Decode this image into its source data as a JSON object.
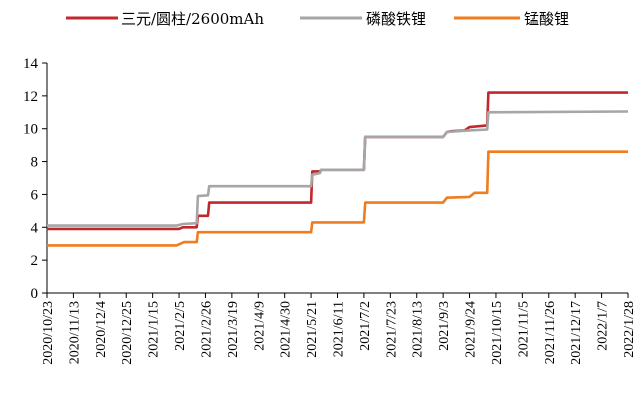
{
  "chart_data": {
    "type": "line",
    "title": "",
    "xlabel": "",
    "ylabel": "",
    "ylim": [
      0,
      14
    ],
    "y_ticks": [
      0,
      2,
      4,
      6,
      8,
      10,
      12,
      14
    ],
    "grid": false,
    "legend_position": "top",
    "x_tick_labels": [
      "2020/10/23",
      "2020/11/13",
      "2020/12/4",
      "2020/12/25",
      "2021/1/15",
      "2021/2/5",
      "2021/2/26",
      "2021/3/19",
      "2021/4/9",
      "2021/4/30",
      "2021/5/21",
      "2021/6/11",
      "2021/7/2",
      "2021/7/23",
      "2021/8/13",
      "2021/9/3",
      "2021/9/24",
      "2021/10/15",
      "2021/11/5",
      "2021/11/26",
      "2021/12/17",
      "2022/1/7",
      "2022/1/28"
    ],
    "series": [
      {
        "name": "三元/圆柱/2600mAh",
        "color": "#c0282d",
        "points": [
          [
            "2020/10/23",
            3.9
          ],
          [
            "2021/2/5",
            3.9
          ],
          [
            "2021/2/8",
            4.0
          ],
          [
            "2021/2/19",
            4.0
          ],
          [
            "2021/2/20",
            4.7
          ],
          [
            "2021/2/28",
            4.7
          ],
          [
            "2021/3/1",
            5.5
          ],
          [
            "2021/5/21",
            5.5
          ],
          [
            "2021/5/22",
            7.4
          ],
          [
            "2021/5/28",
            7.4
          ],
          [
            "2021/5/29",
            7.5
          ],
          [
            "2021/7/2",
            7.5
          ],
          [
            "2021/7/3",
            9.5
          ],
          [
            "2021/9/3",
            9.5
          ],
          [
            "2021/9/6",
            9.8
          ],
          [
            "2021/9/10",
            9.85
          ],
          [
            "2021/9/20",
            9.9
          ],
          [
            "2021/9/24",
            10.1
          ],
          [
            "2021/10/8",
            10.2
          ],
          [
            "2021/10/9",
            12.2
          ],
          [
            "2022/1/28",
            12.2
          ]
        ]
      },
      {
        "name": "磷酸铁锂",
        "color": "#a6a6a6",
        "points": [
          [
            "2020/10/23",
            4.1
          ],
          [
            "2021/2/3",
            4.1
          ],
          [
            "2021/2/8",
            4.2
          ],
          [
            "2021/2/19",
            4.25
          ],
          [
            "2021/2/20",
            5.9
          ],
          [
            "2021/2/28",
            5.95
          ],
          [
            "2021/3/1",
            6.5
          ],
          [
            "2021/5/21",
            6.5
          ],
          [
            "2021/5/22",
            7.2
          ],
          [
            "2021/5/28",
            7.3
          ],
          [
            "2021/5/29",
            7.5
          ],
          [
            "2021/7/2",
            7.5
          ],
          [
            "2021/7/3",
            9.5
          ],
          [
            "2021/9/3",
            9.5
          ],
          [
            "2021/9/6",
            9.8
          ],
          [
            "2021/9/24",
            9.9
          ],
          [
            "2021/10/8",
            9.95
          ],
          [
            "2021/10/9",
            11.0
          ],
          [
            "2022/1/28",
            11.05
          ]
        ]
      },
      {
        "name": "锰酸锂",
        "color": "#f07c1e",
        "points": [
          [
            "2020/10/23",
            2.9
          ],
          [
            "2021/2/3",
            2.9
          ],
          [
            "2021/2/9",
            3.1
          ],
          [
            "2021/2/19",
            3.1
          ],
          [
            "2021/2/20",
            3.7
          ],
          [
            "2021/5/21",
            3.7
          ],
          [
            "2021/5/22",
            4.3
          ],
          [
            "2021/7/2",
            4.3
          ],
          [
            "2021/7/3",
            5.5
          ],
          [
            "2021/9/3",
            5.5
          ],
          [
            "2021/9/6",
            5.8
          ],
          [
            "2021/9/24",
            5.85
          ],
          [
            "2021/9/28",
            6.1
          ],
          [
            "2021/10/8",
            6.1
          ],
          [
            "2021/10/9",
            8.6
          ],
          [
            "2022/1/28",
            8.6
          ]
        ]
      }
    ]
  }
}
